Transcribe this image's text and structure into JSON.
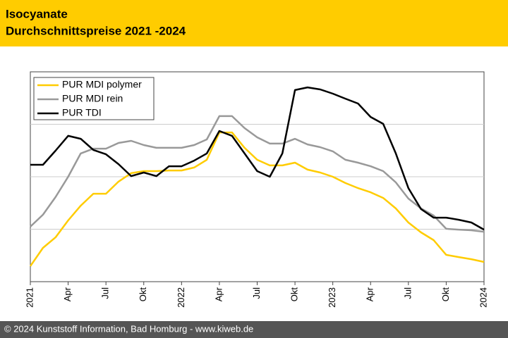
{
  "chart_data": {
    "type": "line",
    "title": [
      "Isocyanate",
      "Durchschnittspreise 2021 -2024"
    ],
    "footer": "© 2024 Kunststoff Information, Bad Homburg - www.kiweb.de",
    "categories": [
      "2021",
      null,
      null,
      "Apr",
      null,
      null,
      "Jul",
      null,
      null,
      "Okt",
      null,
      null,
      "2022",
      null,
      null,
      "Apr",
      null,
      null,
      "Jul",
      null,
      null,
      "Okt",
      null,
      null,
      "2023",
      null,
      null,
      "Apr",
      null,
      null,
      "Jul",
      null,
      null,
      "Okt",
      null,
      null,
      "2024"
    ],
    "ylim": [
      0,
      100
    ],
    "ygrid": [
      25,
      50,
      75
    ],
    "grid": true,
    "legend": "upper left",
    "series": [
      {
        "name": "PUR MDI polymer",
        "color": "#ffcc00",
        "values": [
          7.4,
          16.1,
          21.1,
          29.2,
          36.2,
          41.9,
          41.9,
          47.7,
          51.7,
          52.7,
          52.7,
          53.0,
          53.0,
          54.4,
          58.1,
          71.1,
          71.1,
          63.8,
          58.1,
          55.4,
          55.4,
          56.7,
          53.4,
          52.0,
          50.0,
          47.0,
          44.6,
          42.6,
          39.9,
          34.9,
          28.2,
          23.5,
          19.8,
          12.8,
          11.7,
          10.7,
          9.4
        ]
      },
      {
        "name": "PUR MDI rein",
        "color": "#999999",
        "values": [
          26.2,
          31.9,
          40.3,
          50.0,
          61.1,
          63.4,
          63.4,
          66.1,
          67.1,
          65.1,
          63.8,
          63.8,
          63.8,
          65.1,
          67.8,
          78.9,
          78.9,
          73.2,
          68.8,
          65.8,
          65.8,
          68.1,
          65.4,
          64.1,
          62.1,
          58.1,
          56.7,
          55.0,
          52.7,
          47.3,
          39.6,
          34.9,
          31.5,
          25.2,
          24.8,
          24.5,
          23.8
        ]
      },
      {
        "name": "PUR TDI",
        "color": "#000000",
        "values": [
          55.7,
          55.7,
          62.4,
          69.5,
          68.1,
          62.8,
          60.7,
          56.0,
          50.3,
          52.0,
          50.3,
          55.0,
          55.0,
          57.7,
          61.1,
          71.8,
          69.5,
          61.1,
          52.7,
          50.0,
          61.1,
          91.3,
          92.6,
          91.6,
          89.6,
          87.2,
          84.9,
          78.5,
          75.2,
          61.1,
          44.6,
          34.6,
          30.5,
          30.5,
          29.5,
          28.2,
          24.8
        ]
      }
    ]
  }
}
